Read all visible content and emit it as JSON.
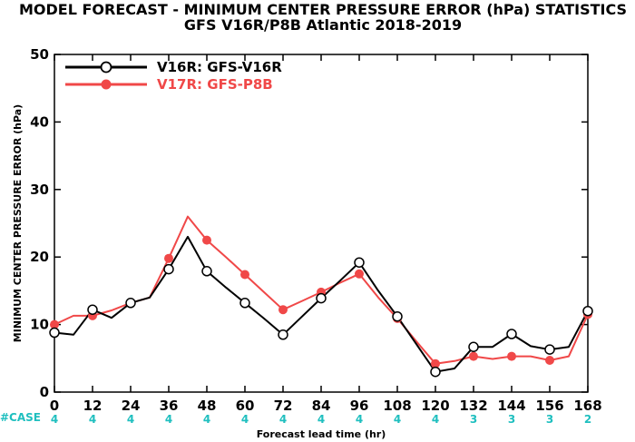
{
  "header": {
    "title_line1": "MODEL FORECAST - MINIMUM CENTER PRESSURE ERROR (hPa) STATISTICS",
    "title_line2": "GFS V16R/P8B Atlantic 2018-2019"
  },
  "case_row": {
    "label": "#CASE",
    "color": "#1fbfbf",
    "counts": [
      "4",
      "4",
      "4",
      "4",
      "4",
      "4",
      "4",
      "4",
      "4",
      "4",
      "4",
      "3",
      "3",
      "3",
      "2"
    ]
  },
  "colors": {
    "v16r": "#000000",
    "v17r": "#f04848"
  },
  "chart_data": {
    "type": "line",
    "title": "MODEL FORECAST - MINIMUM CENTER PRESSURE ERROR (hPa) STATISTICS",
    "subtitle": "GFS V16R/P8B Atlantic 2018-2019",
    "xlabel": "Forecast lead time (hr)",
    "ylabel": "MINIMUM CENTER PRESSURE ERROR (hPa)",
    "xlim": [
      0,
      168
    ],
    "ylim": [
      0,
      50
    ],
    "x_ticks": [
      "0",
      "12",
      "24",
      "36",
      "48",
      "60",
      "72",
      "84",
      "96",
      "108",
      "120",
      "132",
      "144",
      "156",
      "168"
    ],
    "y_ticks": [
      "0",
      "10",
      "20",
      "30",
      "40",
      "50"
    ],
    "legend_position": "top-left",
    "x": [
      0,
      6,
      12,
      18,
      24,
      30,
      36,
      42,
      48,
      54,
      60,
      66,
      72,
      78,
      84,
      90,
      96,
      102,
      108,
      114,
      120,
      126,
      132,
      138,
      144,
      150,
      156,
      162,
      168
    ],
    "marker_x": [
      0,
      12,
      24,
      36,
      48,
      60,
      72,
      84,
      96,
      108,
      120,
      132,
      144,
      156,
      168
    ],
    "series": [
      {
        "name": "V16R: GFS-V16R",
        "color": "#000000",
        "marker": "open-circle",
        "values": [
          8.8,
          8.5,
          12.2,
          11.0,
          13.2,
          14.0,
          18.2,
          23.0,
          17.9,
          15.5,
          13.2,
          10.9,
          8.5,
          11.2,
          13.9,
          16.5,
          19.2,
          15.0,
          11.2,
          7.1,
          3.0,
          3.5,
          6.7,
          6.7,
          8.6,
          6.8,
          6.3,
          6.7,
          12.0
        ]
      },
      {
        "name": "V17R: GFS-P8B",
        "color": "#f04848",
        "marker": "filled-circle",
        "values": [
          10.0,
          11.3,
          11.3,
          12.1,
          13.2,
          14.0,
          19.8,
          26.0,
          22.5,
          20.0,
          17.4,
          14.8,
          12.2,
          13.5,
          14.8,
          16.2,
          17.5,
          14.0,
          10.9,
          7.5,
          4.2,
          4.6,
          5.3,
          4.9,
          5.3,
          5.3,
          4.7,
          5.3,
          11.5
        ]
      }
    ]
  }
}
